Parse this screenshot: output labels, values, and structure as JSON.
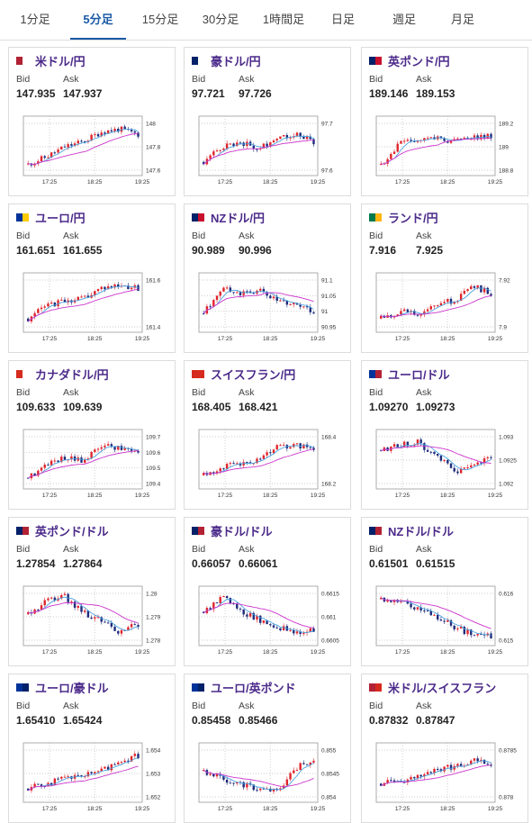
{
  "tabs": [
    {
      "label": "1分足",
      "active": false
    },
    {
      "label": "5分足",
      "active": true
    },
    {
      "label": "15分足",
      "active": false
    },
    {
      "label": "30分足",
      "active": false
    },
    {
      "label": "1時間足",
      "active": false
    },
    {
      "label": "日足",
      "active": false
    },
    {
      "label": "週足",
      "active": false
    },
    {
      "label": "月足",
      "active": false
    }
  ],
  "labels": {
    "bid": "Bid",
    "ask": "Ask"
  },
  "colors": {
    "up": "#e0242b",
    "down": "#1f2b7a",
    "ma_fast": "#4aa3df",
    "ma_slow": "#cc33cc",
    "pair_text": "#4b2a8a"
  },
  "cards": [
    {
      "pair": "米ドル/円",
      "flag": [
        "#b22234",
        "#ffffff"
      ],
      "bid": "147.935",
      "ask": "147.937",
      "chart_data": {
        "type": "candlestick",
        "x_labels": [
          "17:25",
          "18:25",
          "19:25"
        ],
        "y_ticks": [
          "148",
          "147.8",
          "147.6"
        ],
        "trend": [
          0.15,
          0.3,
          0.5,
          0.6,
          0.8,
          0.85,
          0.75
        ]
      }
    },
    {
      "pair": "豪ドル/円",
      "flag": [
        "#012169",
        "#ffffff"
      ],
      "bid": "97.721",
      "ask": "97.726",
      "chart_data": {
        "type": "candlestick",
        "x_labels": [
          "17:25",
          "18:25",
          "19:25"
        ],
        "y_ticks": [
          "97.7",
          "97.6"
        ],
        "trend": [
          0.2,
          0.5,
          0.6,
          0.45,
          0.7,
          0.75,
          0.6
        ]
      }
    },
    {
      "pair": "英ポンド/円",
      "flag": [
        "#012169",
        "#c8102e"
      ],
      "bid": "189.146",
      "ask": "189.153",
      "chart_data": {
        "type": "candlestick",
        "x_labels": [
          "17:25",
          "18:25",
          "19:25"
        ],
        "y_ticks": [
          "189.2",
          "189",
          "188.8"
        ],
        "trend": [
          0.15,
          0.55,
          0.65,
          0.7,
          0.6,
          0.7,
          0.72
        ]
      }
    },
    {
      "pair": "ユーロ/円",
      "flag": [
        "#003399",
        "#ffcc00"
      ],
      "bid": "161.651",
      "ask": "161.655",
      "chart_data": {
        "type": "candlestick",
        "x_labels": [
          "17:25",
          "18:25",
          "19:25"
        ],
        "y_ticks": [
          "161.6",
          "161.4"
        ],
        "trend": [
          0.2,
          0.45,
          0.55,
          0.6,
          0.8,
          0.85,
          0.8
        ]
      }
    },
    {
      "pair": "NZドル/円",
      "flag": [
        "#012169",
        "#c8102e"
      ],
      "bid": "90.989",
      "ask": "90.996",
      "chart_data": {
        "type": "candlestick",
        "x_labels": [
          "17:25",
          "18:25",
          "19:25"
        ],
        "y_ticks": [
          "91.1",
          "91.05",
          "91",
          "90.95"
        ],
        "trend": [
          0.3,
          0.8,
          0.7,
          0.75,
          0.55,
          0.5,
          0.35
        ]
      }
    },
    {
      "pair": "ランド/円",
      "flag": [
        "#007a4d",
        "#ffb612"
      ],
      "bid": "7.916",
      "ask": "7.925",
      "chart_data": {
        "type": "candlestick",
        "x_labels": [
          "17:25",
          "18:25",
          "19:25"
        ],
        "y_ticks": [
          "7.92",
          "7.9"
        ],
        "trend": [
          0.2,
          0.35,
          0.3,
          0.5,
          0.55,
          0.85,
          0.7
        ]
      }
    },
    {
      "pair": "カナダドル/円",
      "flag": [
        "#d52b1e",
        "#ffffff"
      ],
      "bid": "109.633",
      "ask": "109.639",
      "chart_data": {
        "type": "candlestick",
        "x_labels": [
          "17:25",
          "18:25",
          "19:25"
        ],
        "y_ticks": [
          "109.7",
          "109.6",
          "109.5",
          "109.4"
        ],
        "trend": [
          0.15,
          0.4,
          0.55,
          0.5,
          0.8,
          0.75,
          0.7
        ]
      }
    },
    {
      "pair": "スイスフラン/円",
      "flag": [
        "#d52b1e",
        "#d52b1e"
      ],
      "bid": "168.405",
      "ask": "168.421",
      "chart_data": {
        "type": "candlestick",
        "x_labels": [
          "17:25",
          "18:25",
          "19:25"
        ],
        "y_ticks": [
          "168.4",
          "168.2"
        ],
        "trend": [
          0.2,
          0.35,
          0.45,
          0.5,
          0.75,
          0.78,
          0.75
        ]
      }
    },
    {
      "pair": "ユーロ/ドル",
      "flag": [
        "#003399",
        "#b22234"
      ],
      "bid": "1.09270",
      "ask": "1.09273",
      "chart_data": {
        "type": "candlestick",
        "x_labels": [
          "17:25",
          "18:25",
          "19:25"
        ],
        "y_ticks": [
          "1.093",
          "1.0925",
          "1.092"
        ],
        "trend": [
          0.7,
          0.8,
          0.85,
          0.6,
          0.25,
          0.35,
          0.6
        ]
      }
    },
    {
      "pair": "英ポンド/ドル",
      "flag": [
        "#012169",
        "#b22234"
      ],
      "bid": "1.27854",
      "ask": "1.27864",
      "chart_data": {
        "type": "candlestick",
        "x_labels": [
          "17:25",
          "18:25",
          "19:25"
        ],
        "y_ticks": [
          "1.28",
          "1.279",
          "1.278"
        ],
        "trend": [
          0.55,
          0.8,
          0.9,
          0.6,
          0.4,
          0.2,
          0.35
        ]
      }
    },
    {
      "pair": "豪ドル/ドル",
      "flag": [
        "#012169",
        "#b22234"
      ],
      "bid": "0.66057",
      "ask": "0.66061",
      "colored": false,
      "chart_data": {
        "type": "candlestick",
        "x_labels": [
          "17:25",
          "18:25",
          "19:25"
        ],
        "y_ticks": [
          "0.6615",
          "0.661",
          "0.6605"
        ],
        "trend": [
          0.6,
          0.9,
          0.6,
          0.45,
          0.3,
          0.2,
          0.25
        ]
      }
    },
    {
      "pair": "NZドル/ドル",
      "flag": [
        "#012169",
        "#b22234"
      ],
      "bid": "0.61501",
      "ask": "0.61515",
      "chart_data": {
        "type": "candlestick",
        "x_labels": [
          "17:25",
          "18:25",
          "19:25"
        ],
        "y_ticks": [
          "0.616",
          "0.615"
        ],
        "trend": [
          0.85,
          0.8,
          0.65,
          0.5,
          0.3,
          0.15,
          0.12
        ]
      }
    },
    {
      "pair": "ユーロ/豪ドル",
      "flag": [
        "#003399",
        "#012169"
      ],
      "bid": "1.65410",
      "ask": "1.65424",
      "chart_data": {
        "type": "candlestick",
        "x_labels": [
          "17:25",
          "18:25",
          "19:25"
        ],
        "y_ticks": [
          "1.654",
          "1.653",
          "1.652"
        ],
        "trend": [
          0.2,
          0.3,
          0.4,
          0.45,
          0.55,
          0.75,
          0.85
        ]
      }
    },
    {
      "pair": "ユーロ/英ポンド",
      "flag": [
        "#003399",
        "#012169"
      ],
      "bid": "0.85458",
      "ask": "0.85466",
      "chart_data": {
        "type": "candlestick",
        "x_labels": [
          "17:25",
          "18:25",
          "19:25"
        ],
        "y_ticks": [
          "0.855",
          "0.8545",
          "0.854"
        ],
        "trend": [
          0.55,
          0.4,
          0.3,
          0.2,
          0.15,
          0.6,
          0.8
        ]
      }
    },
    {
      "pair": "米ドル/スイスフラン",
      "flag": [
        "#b22234",
        "#d52b1e"
      ],
      "bid": "0.87832",
      "ask": "0.87847",
      "chart_data": {
        "type": "candlestick",
        "x_labels": [
          "17:25",
          "18:25",
          "19:25"
        ],
        "y_ticks": [
          "0.8785",
          "0.878"
        ],
        "trend": [
          0.3,
          0.35,
          0.45,
          0.55,
          0.65,
          0.75,
          0.7
        ]
      }
    }
  ]
}
